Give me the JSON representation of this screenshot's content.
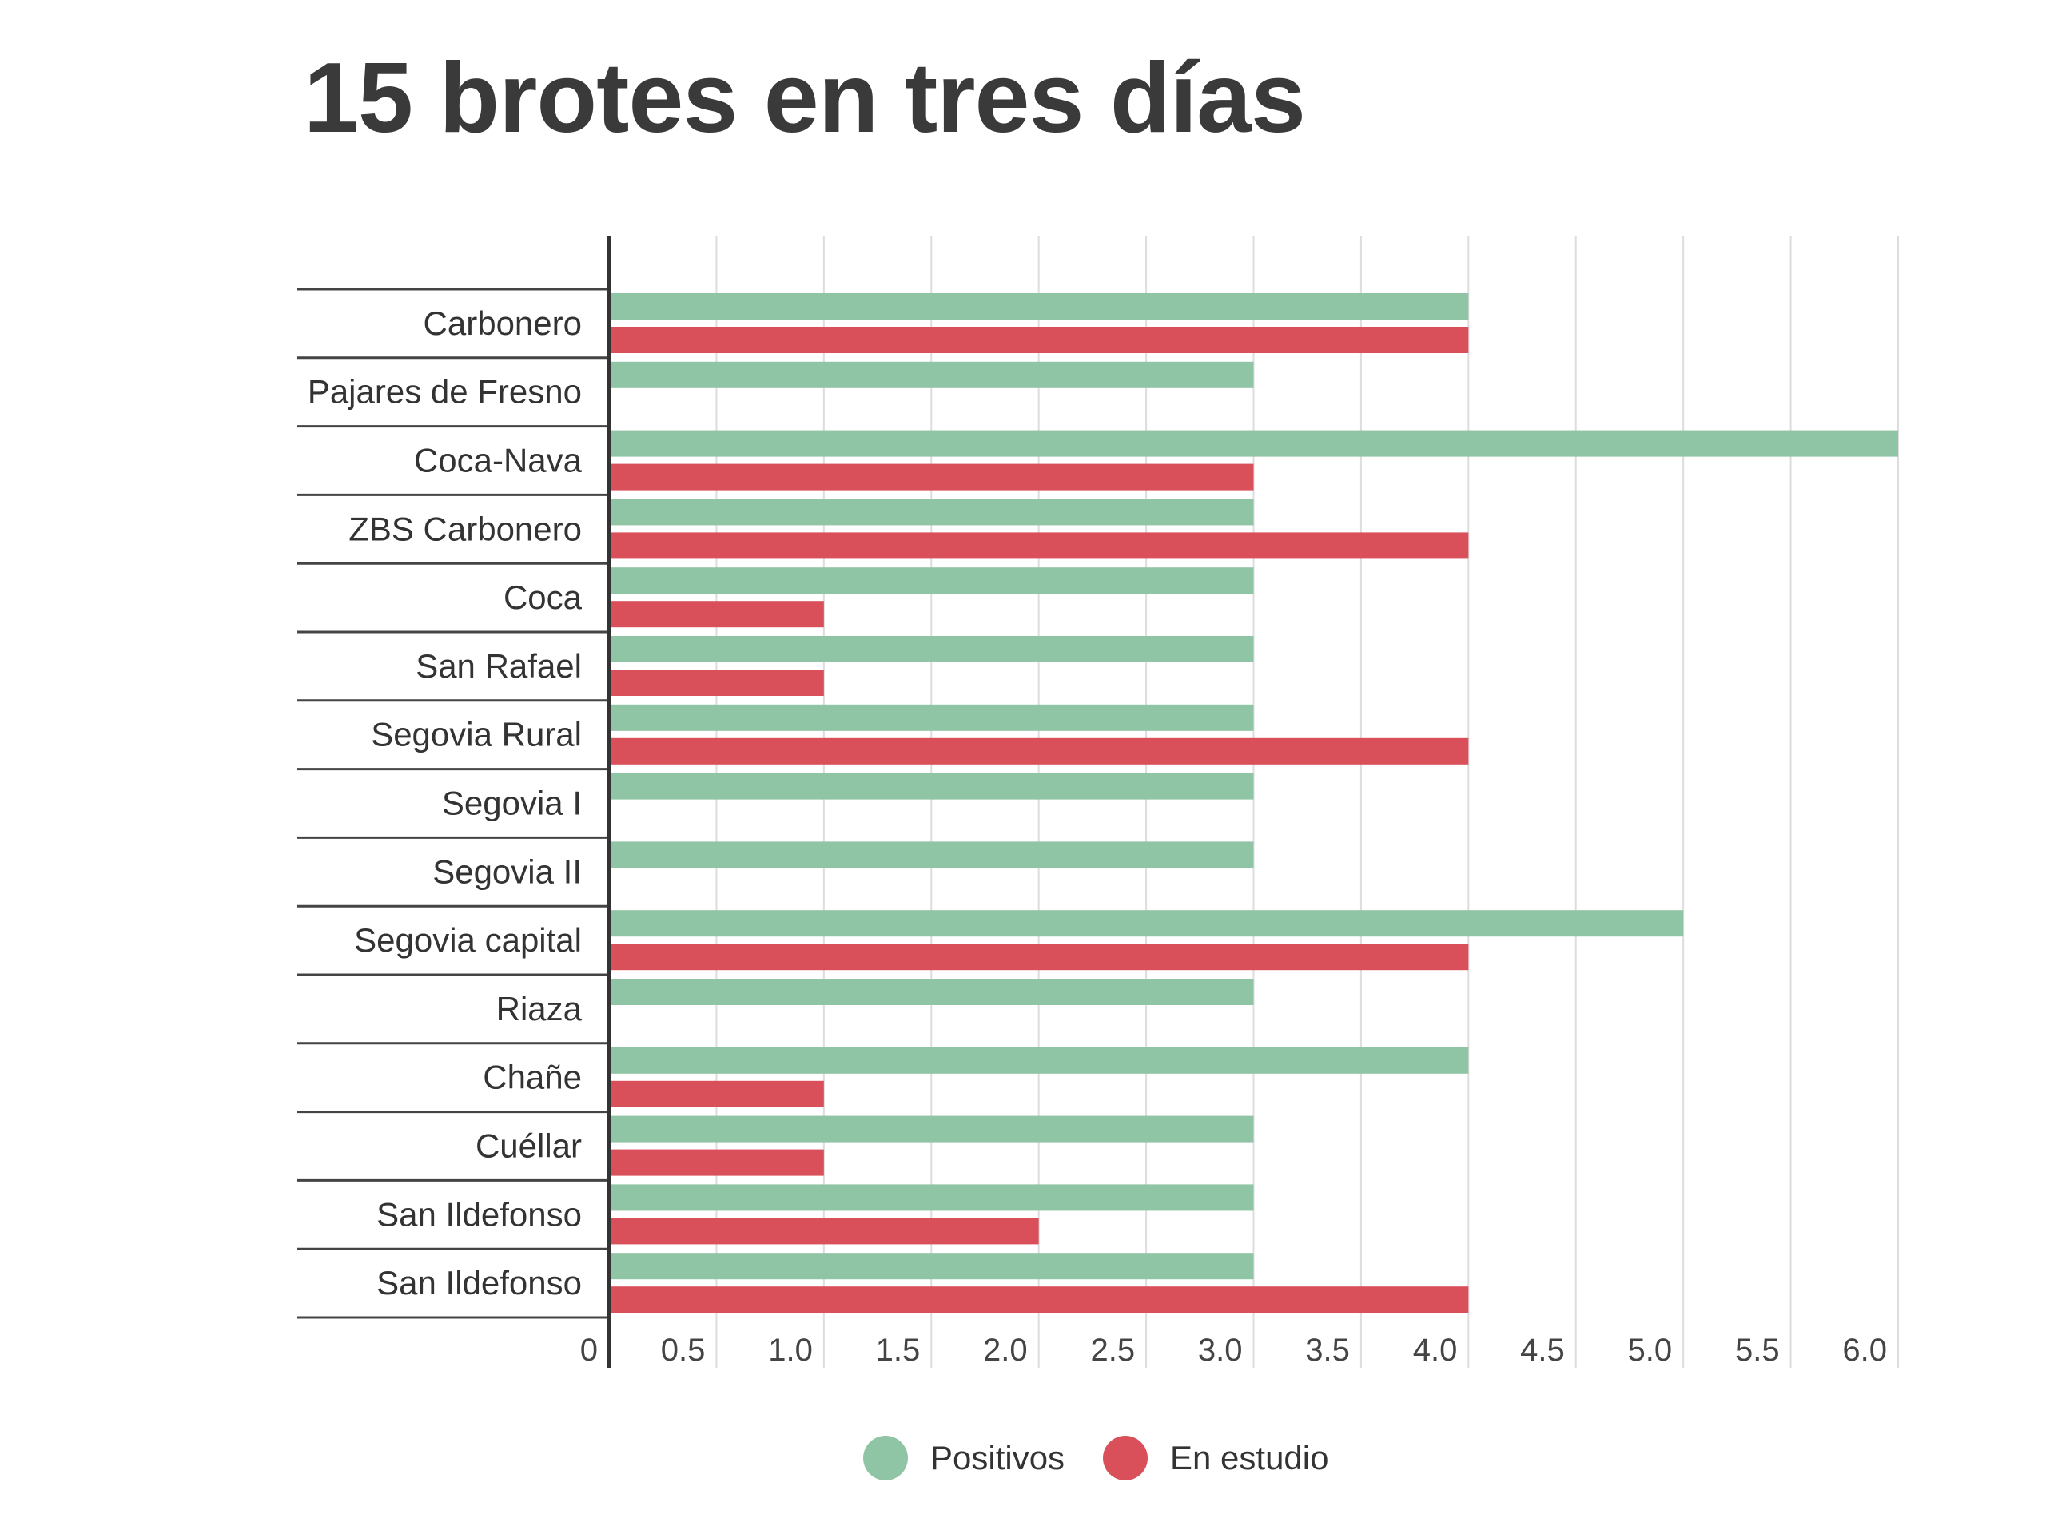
{
  "chart_data": {
    "type": "bar",
    "orientation": "horizontal",
    "title": "15 brotes en tres días",
    "categories": [
      "Carbonero",
      "Pajares de Fresno",
      "Coca-Nava",
      "ZBS Carbonero",
      "Coca",
      "San Rafael",
      "Segovia Rural",
      "Segovia I",
      "Segovia II",
      "Segovia capital",
      "Riaza",
      "Chañe",
      "Cuéllar",
      "San Ildefonso",
      "San Ildefonso"
    ],
    "series": [
      {
        "name": "Positivos",
        "color": "#8fc4a5",
        "values": [
          4,
          3,
          6,
          3,
          3,
          3,
          3,
          3,
          3,
          5,
          3,
          4,
          3,
          3,
          3
        ]
      },
      {
        "name": "En estudio",
        "color": "#d9505a",
        "values": [
          4,
          0,
          3,
          4,
          1,
          1,
          4,
          0,
          0,
          4,
          0,
          1,
          1,
          2,
          4
        ]
      }
    ],
    "xlim": [
      0,
      6
    ],
    "xticks": [
      "0",
      "0.5",
      "1.0",
      "1.5",
      "2.0",
      "2.5",
      "3.0",
      "3.5",
      "4.0",
      "4.5",
      "5.0",
      "5.5",
      "6.0"
    ],
    "xtick_values": [
      0,
      0.5,
      1,
      1.5,
      2,
      2.5,
      3,
      3.5,
      4,
      4.5,
      5,
      5.5,
      6
    ],
    "grid": true,
    "legend_position": "bottom-center"
  }
}
